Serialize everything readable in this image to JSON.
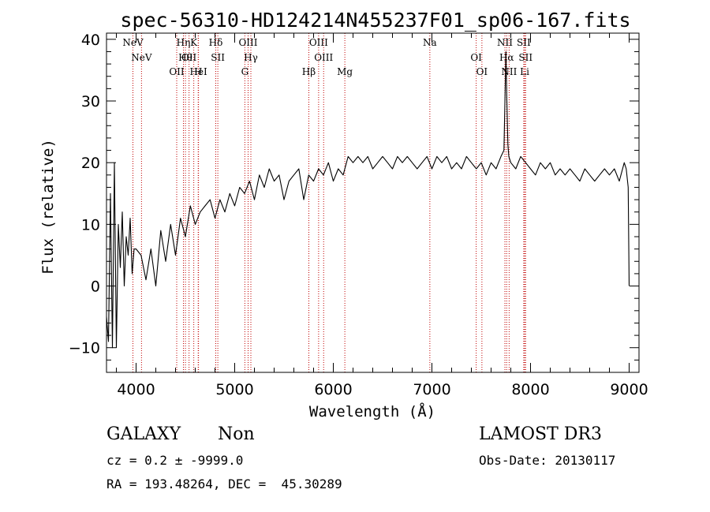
{
  "chart_data": {
    "type": "line",
    "title": "spec-56310-HD124214N455237F01_sp06-167.fits",
    "xlabel": "Wavelength (Å)",
    "ylabel": "Flux (relative)",
    "xlim": [
      3700,
      9100
    ],
    "ylim": [
      -14,
      41
    ],
    "x_ticks": [
      4000,
      5000,
      6000,
      7000,
      8000,
      9000
    ],
    "y_ticks": [
      -10,
      0,
      10,
      20,
      30,
      40
    ],
    "series": [
      {
        "name": "flux",
        "x": [
          3700,
          3720,
          3740,
          3760,
          3780,
          3800,
          3820,
          3840,
          3860,
          3880,
          3900,
          3920,
          3940,
          3960,
          3980,
          4000,
          4050,
          4100,
          4150,
          4200,
          4250,
          4300,
          4350,
          4400,
          4450,
          4500,
          4550,
          4600,
          4650,
          4700,
          4750,
          4800,
          4850,
          4900,
          4950,
          5000,
          5050,
          5100,
          5150,
          5200,
          5250,
          5300,
          5350,
          5400,
          5450,
          5500,
          5550,
          5600,
          5650,
          5700,
          5750,
          5800,
          5850,
          5900,
          5950,
          6000,
          6050,
          6100,
          6150,
          6200,
          6250,
          6300,
          6350,
          6400,
          6450,
          6500,
          6550,
          6600,
          6650,
          6700,
          6750,
          6800,
          6850,
          6900,
          6950,
          7000,
          7050,
          7100,
          7150,
          7200,
          7250,
          7300,
          7350,
          7400,
          7450,
          7500,
          7550,
          7600,
          7650,
          7700,
          7730,
          7750,
          7760,
          7770,
          7780,
          7800,
          7850,
          7900,
          7950,
          8000,
          8050,
          8100,
          8150,
          8200,
          8250,
          8300,
          8350,
          8400,
          8450,
          8500,
          8550,
          8600,
          8650,
          8700,
          8750,
          8800,
          8850,
          8900,
          8950,
          8970,
          8990,
          9000
        ],
        "values": [
          -5,
          -9,
          15,
          -10,
          20,
          -10,
          10,
          3,
          12,
          0,
          8,
          5,
          11,
          2,
          6,
          6,
          5,
          1,
          6,
          0,
          9,
          4,
          10,
          5,
          11,
          8,
          13,
          10,
          12,
          13,
          14,
          11,
          14,
          12,
          15,
          13,
          16,
          15,
          17,
          14,
          18,
          16,
          19,
          17,
          18,
          14,
          17,
          18,
          19,
          14,
          18,
          17,
          19,
          18,
          20,
          17,
          19,
          18,
          21,
          20,
          21,
          20,
          21,
          19,
          20,
          21,
          20,
          19,
          21,
          20,
          21,
          20,
          19,
          20,
          21,
          19,
          21,
          20,
          21,
          19,
          20,
          19,
          21,
          20,
          19,
          20,
          18,
          20,
          19,
          21,
          22,
          38,
          30,
          23,
          21,
          20,
          19,
          21,
          20,
          19,
          18,
          20,
          19,
          20,
          18,
          19,
          18,
          19,
          18,
          17,
          19,
          18,
          17,
          18,
          19,
          18,
          19,
          17,
          20,
          19,
          16,
          0
        ]
      }
    ],
    "spectral_lines": [
      {
        "label": "NeV",
        "wavelength": 3968
      },
      {
        "label": "NeV",
        "wavelength": 4055
      },
      {
        "label": "OII",
        "wavelength": 4412
      },
      {
        "label": "Hη",
        "wavelength": 4480
      },
      {
        "label": "Hθ",
        "wavelength": 4500
      },
      {
        "label": "H",
        "wavelength": 4630
      },
      {
        "label": "K",
        "wavelength": 4585
      },
      {
        "label": "OII",
        "wavelength": 4537
      },
      {
        "label": "HeI",
        "wavelength": 4633
      },
      {
        "label": "Hδ",
        "wavelength": 4808
      },
      {
        "label": "SII",
        "wavelength": 4829
      },
      {
        "label": "G",
        "wavelength": 5103
      },
      {
        "label": "OIII",
        "wavelength": 5136
      },
      {
        "label": "Hγ",
        "wavelength": 5164
      },
      {
        "label": "Hβ",
        "wavelength": 5752
      },
      {
        "label": "OIII",
        "wavelength": 5851
      },
      {
        "label": "OIII",
        "wavelength": 5902
      },
      {
        "label": "Mg",
        "wavelength": 6117
      },
      {
        "label": "Na",
        "wavelength": 6979
      },
      {
        "label": "OI",
        "wavelength": 7449
      },
      {
        "label": "OI",
        "wavelength": 7507
      },
      {
        "label": "NII",
        "wavelength": 7740
      },
      {
        "label": "Hα",
        "wavelength": 7758
      },
      {
        "label": "NII",
        "wavelength": 7783
      },
      {
        "label": "SII",
        "wavelength": 7931
      },
      {
        "label": "SII",
        "wavelength": 7950
      },
      {
        "label": "Li",
        "wavelength": 7940
      }
    ]
  },
  "info": {
    "class": "GALAXY",
    "subclass": "Non",
    "survey": "LAMOST DR3",
    "cz": "cz = 0.2 ± -9999.0",
    "obs_date": "Obs-Date: 20130117",
    "coords": "RA = 193.48264, DEC =  45.30289"
  }
}
